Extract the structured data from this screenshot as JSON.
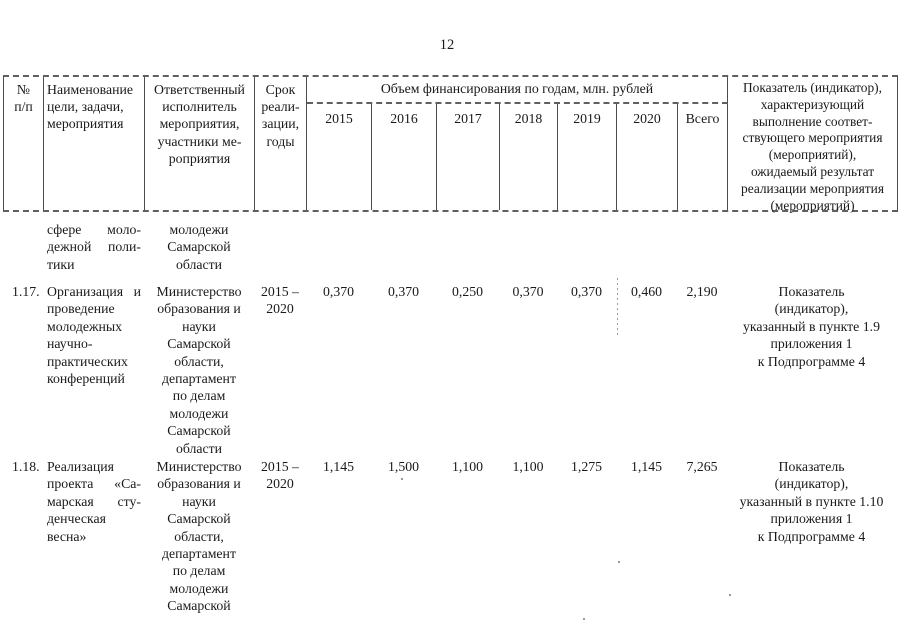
{
  "page": {
    "number": "12"
  },
  "table": {
    "header": {
      "num": [
        "№",
        "п/п"
      ],
      "name": [
        "Наименование",
        "цели, задачи,",
        "мероприятия"
      ],
      "executor": [
        "Ответственный",
        "исполнитель",
        "мероприятия,",
        "участники ме-",
        "роприятия"
      ],
      "term": [
        "Срок",
        "реали-",
        "зации,",
        "годы"
      ],
      "financing_title": "Объем финансирования по годам, млн. рублей",
      "years": [
        "2015",
        "2016",
        "2017",
        "2018",
        "2019",
        "2020",
        "Всего"
      ],
      "indicator": [
        "Показатель (индикатор),",
        "характеризующий",
        "выполнение соответ-",
        "ствующего мероприятия",
        "(мероприятий),",
        "ожидаемый результат",
        "реализации мероприятия",
        "(мероприятий)"
      ]
    },
    "rows": [
      {
        "num": "",
        "name_lines": [
          "сфере моло-",
          "дежной поли-",
          "тики"
        ],
        "executor_lines": [
          "молодежи",
          "Самарской",
          "области"
        ],
        "term_lines": [],
        "values": [
          "",
          "",
          "",
          "",
          "",
          "",
          ""
        ],
        "indicator_lines": []
      },
      {
        "num": "1.17.",
        "name_lines": [
          "Организация и",
          "проведение",
          "молодежных",
          "научно-",
          "практических",
          "конференций"
        ],
        "executor_lines": [
          "Министерство",
          "образования и",
          "науки",
          "Самарской",
          "области,",
          "департамент",
          "по делам",
          "молодежи",
          "Самарской",
          "области"
        ],
        "term_lines": [
          "2015 –",
          "2020"
        ],
        "values": [
          "0,370",
          "0,370",
          "0,250",
          "0,370",
          "0,370",
          "0,460",
          "2,190"
        ],
        "indicator_lines": [
          "Показатель",
          "(индикатор),",
          "указанный в пункте 1.9",
          "приложения 1",
          "к Подпрограмме 4"
        ]
      },
      {
        "num": "1.18.",
        "name_lines": [
          "Реализация",
          "проекта «Са-",
          "марская сту-",
          "денческая",
          "весна»"
        ],
        "executor_lines": [
          "Министерство",
          "образования и",
          "науки",
          "Самарской",
          "области,",
          "департамент",
          "по делам",
          "молодежи",
          "Самарской"
        ],
        "term_lines": [
          "2015 –",
          "2020"
        ],
        "values": [
          "1,145",
          "1,500",
          "1,100",
          "1,100",
          "1,275",
          "1,145",
          "7,265"
        ],
        "indicator_lines": [
          "Показатель",
          "(индикатор),",
          "указанный в пункте 1.10",
          "приложения 1",
          "к Подпрограмме 4"
        ]
      }
    ]
  }
}
